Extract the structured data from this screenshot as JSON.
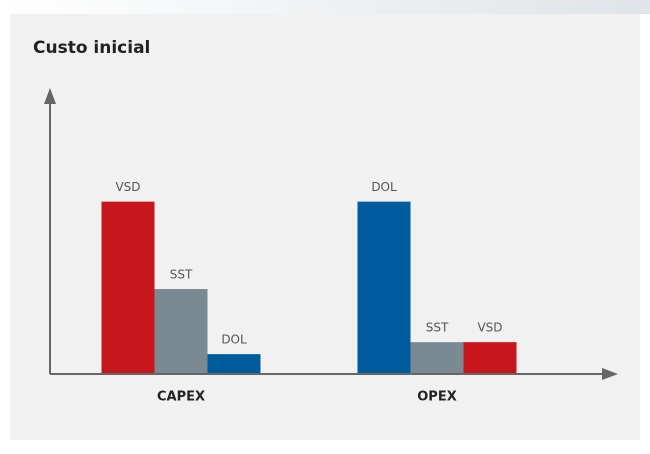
{
  "chart_data": {
    "type": "bar",
    "title": "Custo inicial",
    "groups": [
      {
        "name": "CAPEX",
        "bars": [
          {
            "label": "VSD",
            "value": 100,
            "color": "#c8161d"
          },
          {
            "label": "SST",
            "value": 49,
            "color": "#7a8a93"
          },
          {
            "label": "DOL",
            "value": 11,
            "color": "#005c9c"
          }
        ]
      },
      {
        "name": "OPEX",
        "bars": [
          {
            "label": "DOL",
            "value": 100,
            "color": "#005c9c"
          },
          {
            "label": "SST",
            "value": 18,
            "color": "#7a8a93"
          },
          {
            "label": "VSD",
            "value": 18,
            "color": "#c8161d"
          }
        ]
      }
    ],
    "ylim": [
      0,
      164
    ]
  }
}
